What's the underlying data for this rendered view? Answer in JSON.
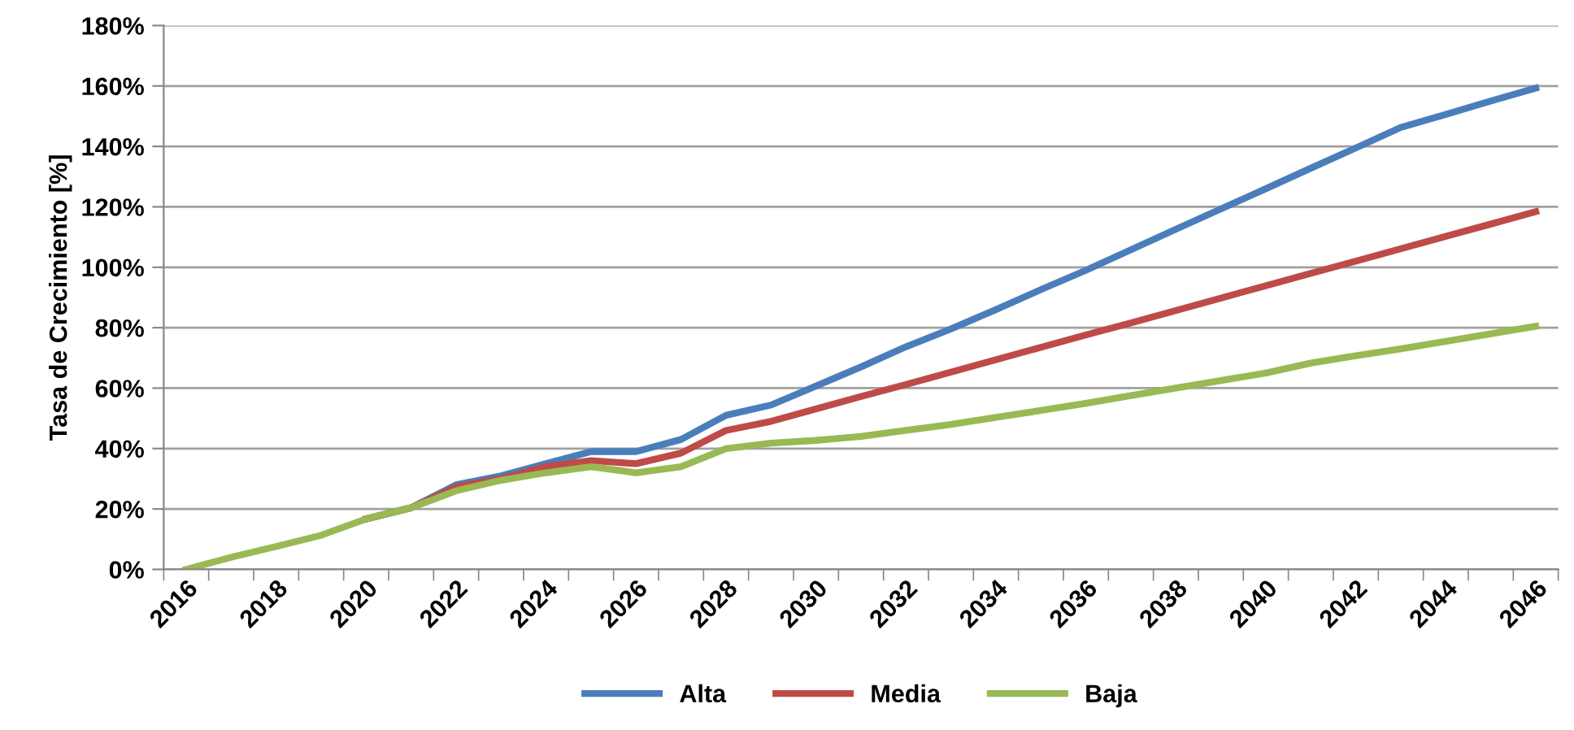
{
  "chart_data": {
    "type": "line",
    "ylabel": "Tasa de Crecimiento [%]",
    "categories": [
      "2016",
      null,
      "2018",
      null,
      "2020",
      null,
      "2022",
      null,
      "2024",
      null,
      "2026",
      null,
      "2028",
      null,
      "2030",
      null,
      "2032",
      null,
      "2034",
      null,
      "2036",
      null,
      "2038",
      null,
      "2040",
      null,
      "2042",
      null,
      "2044",
      null,
      "2046"
    ],
    "series": [
      {
        "name": "Alta",
        "color": "#4a7ebb",
        "values": [
          null,
          null,
          null,
          null,
          16.7,
          20.4,
          28,
          31,
          35,
          39,
          39,
          43,
          51,
          54.4,
          60.7,
          67,
          73.7,
          79.6,
          86,
          92.6,
          99,
          105.8,
          112.6,
          119.3,
          126,
          132.8,
          139.5,
          146.3,
          150.6,
          155,
          159.3
        ]
      },
      {
        "name": "Media",
        "color": "#be4b48",
        "values": [
          null,
          null,
          null,
          null,
          16.7,
          20.4,
          27.3,
          30,
          34,
          36,
          35,
          38.5,
          46,
          49,
          53.1,
          57.2,
          61.2,
          65.3,
          69.4,
          73.5,
          77.6,
          81.6,
          85.7,
          89.8,
          93.9,
          98,
          102,
          106.1,
          110.2,
          114.3,
          118.4
        ]
      },
      {
        "name": "Baja",
        "color": "#98b954",
        "values": [
          0,
          4,
          7.6,
          11.3,
          16.7,
          20.4,
          26,
          29.5,
          32,
          34,
          32,
          34,
          40,
          41.8,
          42.7,
          44,
          46,
          48,
          50.3,
          52.6,
          55,
          57.5,
          60,
          62.5,
          65,
          68.3,
          70.7,
          73,
          75.5,
          78,
          80.5
        ]
      }
    ],
    "ylim": [
      0,
      180
    ],
    "yticks": [
      {
        "value": 0,
        "label": "0%"
      },
      {
        "value": 20,
        "label": "20%"
      },
      {
        "value": 40,
        "label": "40%"
      },
      {
        "value": 60,
        "label": "60%"
      },
      {
        "value": 80,
        "label": "80%"
      },
      {
        "value": 100,
        "label": "100%"
      },
      {
        "value": 120,
        "label": "120%"
      },
      {
        "value": 140,
        "label": "140%"
      },
      {
        "value": 160,
        "label": "160%"
      },
      {
        "value": 180,
        "label": "180%"
      }
    ],
    "grid": "y",
    "legend": "bottom",
    "marker": "none",
    "line_style": "solid"
  }
}
